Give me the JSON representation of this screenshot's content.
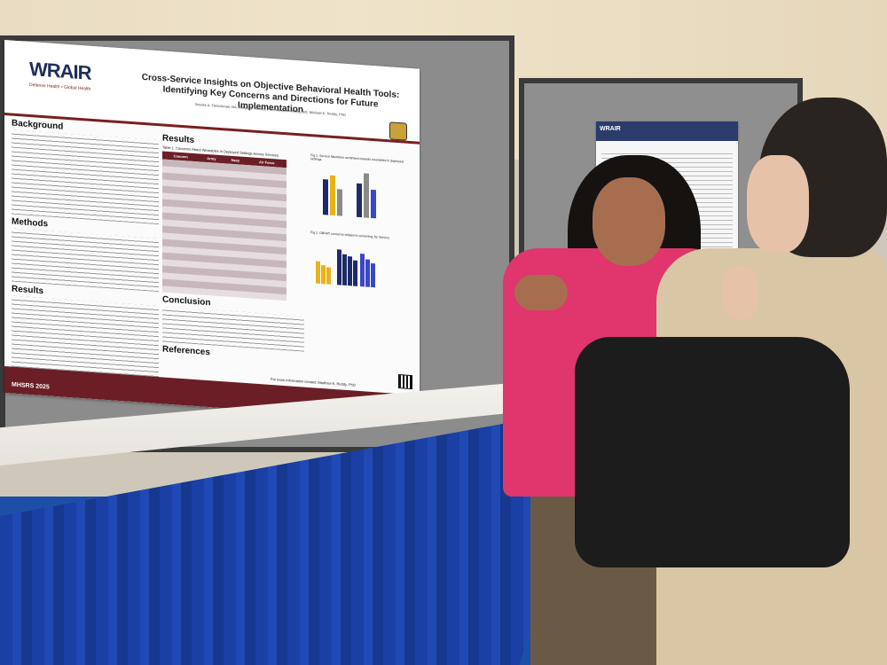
{
  "poster": {
    "logo": "WRAIR",
    "logo_sub": "Defense Health • Global Health",
    "title": "Cross-Service Insights on Objective Behavioral Health Tools: Identifying Key Concerns and Directions for Future Implementation",
    "authors": "Brooke A. Fleischman, BA; Robyn S. Recker, PhD; Alexis A. McVey, BS; Michael K. Reddy, PhD",
    "sections": {
      "background": "Background",
      "methods": "Methods",
      "results_left": "Results",
      "results_mid": "Results",
      "conclusion": "Conclusion",
      "references": "References"
    },
    "table_caption": "Table 1. Concerns About Wearables in Deployed Settings Across Services",
    "table_headers": [
      "Concern",
      "Army",
      "Navy",
      "Air Force"
    ],
    "fig1_caption": "Fig 1. Service Members sentiment towards wearables in deployed settings",
    "fig2_caption": "Fig 2. OBHAT concerns related to screening, by Service",
    "contact": "For more information contact: Madhavi K. Reddy, PhD",
    "footer": "MHSRS 2025"
  },
  "colors": {
    "poster_maroon": "#6b1e26",
    "table_blue": "#1a3fa5",
    "shirt_pink": "#e0356d",
    "chart_gold": "#e8b21a",
    "chart_navy": "#1f2a6b"
  }
}
